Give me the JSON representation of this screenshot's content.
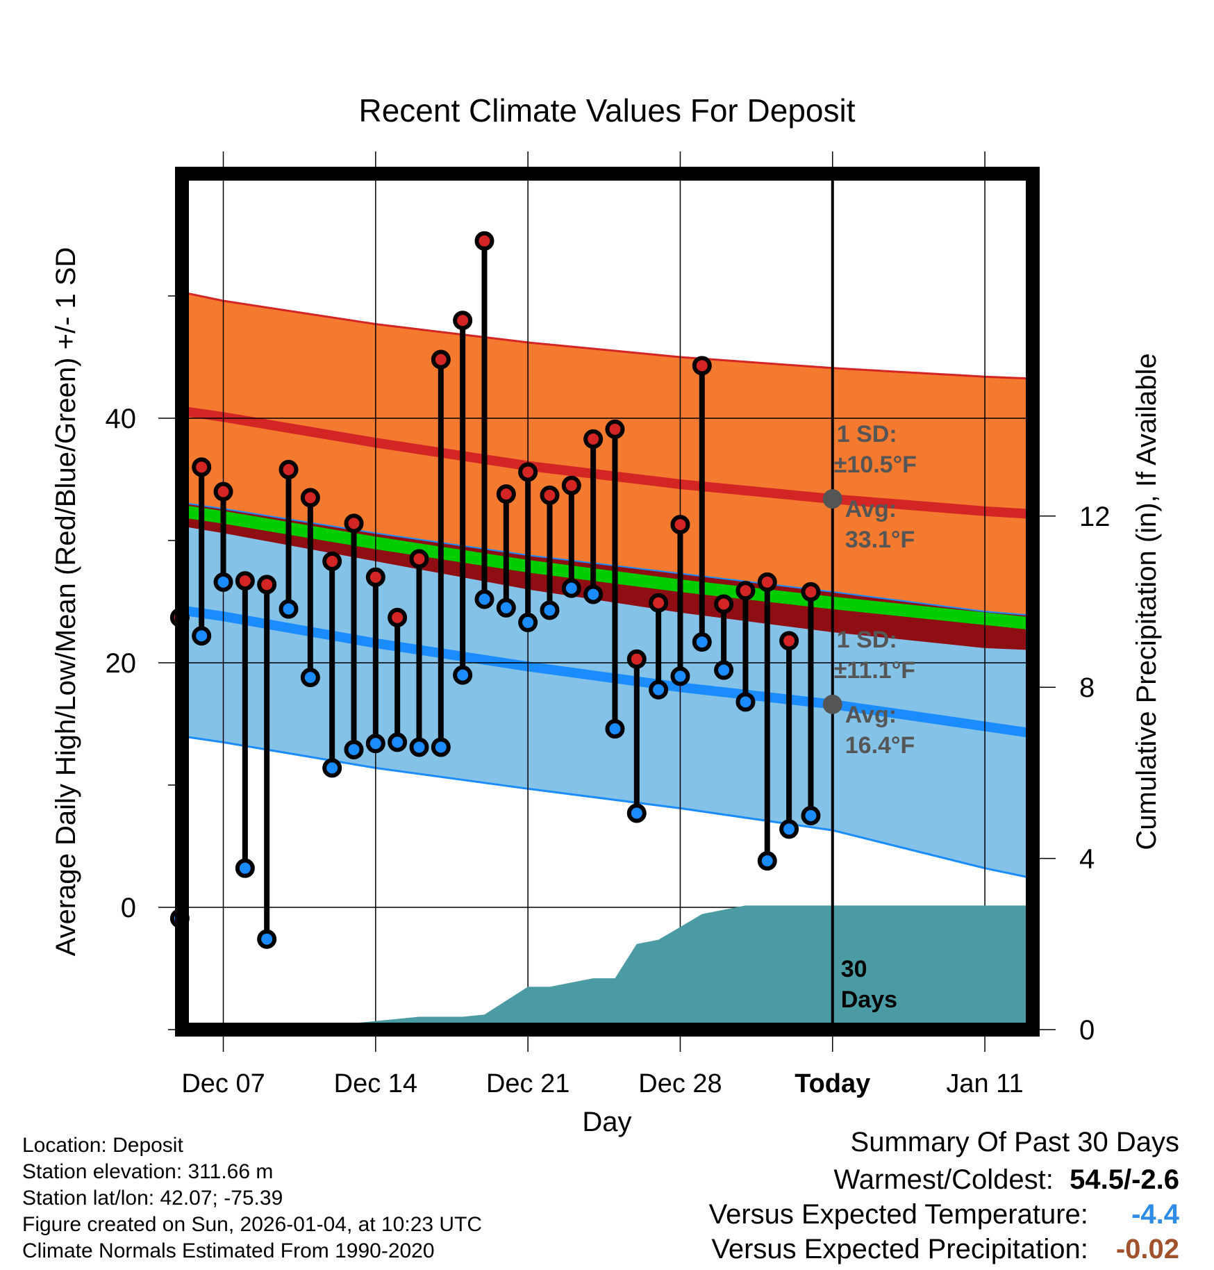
{
  "chart_data": {
    "type": "line",
    "title": "Recent Climate Values For Deposit",
    "xlabel": "Day",
    "ylabel": "Average Daily High/Low/Mean (Red/Blue/Green) +/- 1 SD",
    "y2label": "Cumulative Precipitation (in), If Available",
    "ylim": [
      -10,
      60
    ],
    "y_ticks": [
      "0",
      "20",
      "40"
    ],
    "y_tick_values": [
      0,
      20,
      40
    ],
    "y_minor_ticks": [
      -10,
      10,
      30,
      50
    ],
    "y2lim": [
      0,
      20
    ],
    "y2_ticks": [
      "0",
      "4",
      "8",
      "12"
    ],
    "y2_tick_values": [
      0,
      4,
      8,
      12
    ],
    "xlim": [
      -1.9,
      37.2
    ],
    "x_tick_values": [
      0,
      7,
      14,
      21,
      28,
      35
    ],
    "x_ticks": [
      "Dec 07",
      "Dec 14",
      "Dec 21",
      "Dec 28",
      "Today",
      "Jan 11"
    ],
    "today_index": 28,
    "daily_highs": [
      23.7,
      36.0,
      34.0,
      26.7,
      26.4,
      35.8,
      33.5,
      28.3,
      31.4,
      27.0,
      23.7,
      28.5,
      44.8,
      48.0,
      54.5,
      33.8,
      35.6,
      33.7,
      34.5,
      38.3,
      39.1,
      20.3,
      24.9,
      31.3,
      44.3,
      24.8,
      25.9,
      26.6,
      21.8,
      25.8
    ],
    "daily_lows": [
      -0.9,
      22.2,
      26.6,
      3.2,
      -2.6,
      24.4,
      18.8,
      11.4,
      12.9,
      13.4,
      13.5,
      13.1,
      13.1,
      19.0,
      25.2,
      24.5,
      23.3,
      24.3,
      26.1,
      25.6,
      14.6,
      7.7,
      17.8,
      18.9,
      21.7,
      19.4,
      16.8,
      3.8,
      6.4,
      7.5
    ],
    "data_start_index": -2,
    "normal_high": {
      "x": [
        -2.7,
        0,
        7,
        14,
        21,
        28,
        35,
        37.7
      ],
      "values": [
        40.8,
        40.1,
        38.0,
        36.1,
        34.6,
        33.4,
        32.4,
        32.1
      ]
    },
    "normal_low": {
      "x": [
        -2.7,
        0,
        7,
        14,
        21,
        28,
        35,
        37.7
      ],
      "values": [
        24.5,
        23.8,
        21.6,
        19.7,
        18.0,
        16.6,
        14.8,
        14.1
      ]
    },
    "normal_mean": {
      "x": [
        -2.7,
        0,
        7,
        14,
        21,
        28,
        35,
        37.7
      ],
      "values": [
        32.6,
        31.9,
        29.8,
        27.9,
        26.3,
        24.9,
        23.6,
        23.1
      ]
    },
    "high_upper": {
      "x": [
        -2.7,
        0,
        7,
        14,
        21,
        28,
        35,
        37.7
      ],
      "values": [
        50.6,
        49.6,
        47.7,
        46.2,
        45.0,
        44.1,
        43.4,
        43.2
      ]
    },
    "high_lower": {
      "x": [
        -2.7,
        0,
        7,
        14,
        21,
        28,
        35,
        37.7
      ],
      "values": [
        31.4,
        30.6,
        28.3,
        26.0,
        24.1,
        22.5,
        21.2,
        21.0
      ]
    },
    "low_upper": {
      "x": [
        -2.7,
        0,
        7,
        14,
        21,
        28,
        35,
        37.7
      ],
      "values": [
        33.3,
        32.6,
        30.6,
        28.8,
        27.3,
        25.8,
        24.2,
        23.8
      ]
    },
    "low_lower": {
      "x": [
        -2.7,
        0,
        7,
        14,
        21,
        28,
        35,
        37.7
      ],
      "values": [
        14.2,
        13.5,
        11.4,
        9.7,
        8.1,
        6.3,
        3.2,
        2.2
      ]
    },
    "precip_cumulative": {
      "x": [
        -2.7,
        4,
        6,
        9,
        11,
        12,
        14,
        15,
        17,
        18,
        19,
        20,
        21,
        22,
        23,
        24,
        25,
        26,
        27,
        28,
        37.7
      ],
      "values": [
        0,
        0,
        0.15,
        0.3,
        0.3,
        0.35,
        1.0,
        1.0,
        1.2,
        1.2,
        2.0,
        2.1,
        2.4,
        2.7,
        2.8,
        2.9,
        2.9,
        2.9,
        2.9,
        2.9,
        2.9
      ]
    },
    "annotations": {
      "high_sd": "1 SD:",
      "high_sd_value": "±10.5°F",
      "high_avg": "Avg:",
      "high_avg_value": "33.1°F",
      "low_sd": "1 SD:",
      "low_sd_value": "±11.1°F",
      "low_avg": "Avg:",
      "low_avg_value": "16.4°F",
      "days_count": "30",
      "days_word": "Days"
    },
    "colors": {
      "high_band": "#f47a30",
      "low_band": "#85c2e8",
      "overlap_band": "#8f0e14",
      "normal_high_line": "#d42525",
      "normal_low_line": "#1a8cff",
      "normal_mean_line": "#00cc00",
      "precip_fill": "#4a9ba3",
      "high_marker": "#d42525",
      "low_marker": "#1a8cff",
      "annotation_text": "#555555",
      "avg_dot": "#555555"
    }
  },
  "footer": {
    "location": "Location: Deposit",
    "elevation": "Station elevation: 311.66 m",
    "latlon": "Station lat/lon: 42.07; -75.39",
    "created": "Figure created on Sun, 2026-01-04, at 10:23 UTC",
    "normals": "Climate Normals Estimated From 1990-2020"
  },
  "summary": {
    "heading": "Summary Of Past 30 Days",
    "warm_cold_label": "Warmest/Coldest:",
    "warm_cold_value": "54.5/-2.6",
    "temp_label": "Versus Expected Temperature:",
    "temp_value": "-4.4",
    "temp_color": "#2e8be6",
    "precip_label": "Versus Expected Precipitation:",
    "precip_value": "-0.02",
    "precip_color": "#a0522d"
  }
}
